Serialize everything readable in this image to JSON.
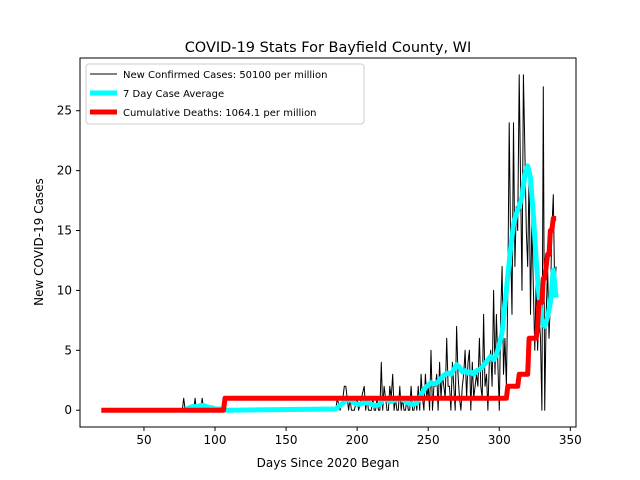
{
  "chart_data": {
    "type": "line",
    "title": "COVID-19 Stats For Bayfield County, WI",
    "xlabel": "Days Since 2020 Began",
    "ylabel": "New COVID-19 Cases",
    "xlim": [
      5,
      354
    ],
    "ylim": [
      -1.4,
      29.4
    ],
    "xticks": [
      50,
      100,
      150,
      200,
      250,
      300,
      350
    ],
    "yticks": [
      0,
      5,
      10,
      15,
      20,
      25
    ],
    "grid": false,
    "legend_position": "top-left",
    "series": [
      {
        "name": "New Confirmed Cases: 50100 per million",
        "color": "#000000",
        "x": [
          77,
          78,
          79,
          80,
          85,
          86,
          87,
          90,
          91,
          92,
          93,
          185,
          186,
          188,
          190,
          191,
          192,
          193,
          194,
          195,
          196,
          197,
          198,
          200,
          201,
          205,
          206,
          207,
          208,
          210,
          211,
          212,
          213,
          214,
          215,
          216,
          217,
          218,
          219,
          220,
          221,
          222,
          223,
          224,
          225,
          226,
          227,
          228,
          229,
          230,
          231,
          232,
          233,
          234,
          235,
          236,
          237,
          238,
          239,
          240,
          241,
          242,
          243,
          244,
          245,
          246,
          247,
          248,
          249,
          250,
          251,
          252,
          253,
          254,
          255,
          256,
          257,
          258,
          259,
          260,
          261,
          262,
          263,
          264,
          265,
          266,
          267,
          268,
          269,
          270,
          271,
          272,
          273,
          274,
          275,
          276,
          277,
          278,
          279,
          280,
          281,
          282,
          283,
          284,
          285,
          286,
          287,
          288,
          289,
          290,
          291,
          292,
          293,
          294,
          295,
          296,
          297,
          298,
          299,
          300,
          301,
          302,
          303,
          304,
          305,
          306,
          307,
          308,
          309,
          310,
          311,
          312,
          313,
          314,
          315,
          316,
          317,
          318,
          319,
          320,
          321,
          322,
          323,
          324,
          325,
          326,
          327,
          328,
          329,
          330,
          331,
          332,
          333,
          334,
          335,
          336,
          337,
          338,
          339,
          340
        ],
        "y": [
          0,
          1,
          0,
          0,
          0,
          1,
          0,
          0,
          1,
          0,
          0,
          0,
          1,
          0,
          1,
          2,
          2,
          1,
          0,
          1,
          0,
          0,
          0,
          1,
          0,
          2,
          0,
          1,
          0,
          0,
          1,
          0,
          0,
          1,
          0,
          0,
          4,
          0,
          2,
          1,
          0,
          0,
          2,
          1,
          3,
          0,
          1,
          0,
          0,
          2,
          0,
          1,
          0,
          0,
          1,
          0,
          0,
          2,
          0,
          0,
          1,
          0,
          2,
          0,
          3,
          1,
          0,
          3,
          1,
          2,
          0,
          5,
          0,
          2,
          2,
          3,
          0,
          4,
          1,
          3,
          2,
          1,
          6,
          2,
          2,
          0,
          4,
          2,
          0,
          7,
          3,
          1,
          0,
          2,
          3,
          5,
          1,
          4,
          5,
          0,
          4,
          1,
          2,
          3,
          2,
          6,
          2,
          1,
          8,
          2,
          3,
          0,
          4,
          5,
          2,
          10,
          3,
          8,
          4,
          0,
          8,
          12,
          3,
          6,
          2,
          10,
          24,
          14,
          8,
          24,
          12,
          17,
          15,
          28,
          19,
          10,
          28,
          22,
          15,
          12,
          20,
          8,
          16,
          10,
          5,
          11,
          5,
          8,
          6,
          0,
          27,
          0,
          8,
          12,
          6,
          9,
          15,
          18,
          10,
          12
        ],
        "line_width": 1
      },
      {
        "name": "7 Day Case Average",
        "color": "#00ffff",
        "x": [
          80,
          82,
          84,
          86,
          88,
          90,
          92,
          94,
          96,
          98,
          100,
          102,
          104,
          106,
          108,
          110,
          185,
          188,
          190,
          192,
          194,
          196,
          198,
          200,
          202,
          204,
          206,
          208,
          210,
          212,
          214,
          216,
          218,
          220,
          222,
          224,
          226,
          228,
          230,
          232,
          234,
          236,
          238,
          240,
          242,
          244,
          246,
          248,
          250,
          252,
          254,
          256,
          258,
          260,
          262,
          264,
          266,
          268,
          270,
          272,
          274,
          276,
          278,
          280,
          282,
          284,
          286,
          288,
          290,
          292,
          294,
          296,
          298,
          300,
          302,
          304,
          306,
          308,
          310,
          312,
          314,
          316,
          318,
          320,
          322,
          324,
          326,
          328,
          330,
          332,
          334,
          336,
          338,
          340
        ],
        "y": [
          0.1,
          0.2,
          0.3,
          0.3,
          0.3,
          0.4,
          0.4,
          0.3,
          0.2,
          0.2,
          0.1,
          0.1,
          0.1,
          0.1,
          0,
          0,
          0.1,
          0.4,
          0.6,
          0.8,
          0.9,
          0.8,
          0.6,
          0.5,
          0.5,
          0.6,
          0.6,
          0.6,
          0.5,
          0.4,
          0.4,
          0.5,
          0.9,
          1.0,
          0.8,
          0.7,
          0.8,
          0.9,
          1.0,
          0.9,
          0.7,
          0.6,
          0.5,
          0.5,
          0.6,
          1.0,
          1.5,
          1.9,
          2.1,
          2.3,
          2.2,
          2.3,
          2.5,
          2.8,
          3.0,
          3.1,
          3.0,
          3.4,
          3.8,
          3.6,
          3.2,
          3.3,
          3.1,
          3.2,
          3.0,
          3.3,
          3.4,
          3.6,
          3.9,
          4.2,
          4.5,
          4.2,
          4.6,
          5.5,
          6.5,
          8.8,
          11.2,
          13.5,
          15.5,
          16.4,
          17.0,
          17.8,
          19.6,
          20.4,
          19.4,
          16.2,
          12.5,
          9.5,
          7.3,
          7.0,
          7.8,
          9.0,
          11.7,
          9.4
        ],
        "line_width": 5
      },
      {
        "name": "Cumulative Deaths: 1064.1 per million",
        "color": "#ff0000",
        "x": [
          20,
          106,
          107,
          108,
          296,
          297,
          298,
          305,
          306,
          307,
          313,
          314,
          315,
          320,
          321,
          322,
          326,
          327,
          328,
          330,
          331,
          332,
          334,
          335,
          336,
          337,
          338,
          339,
          340
        ],
        "y": [
          0,
          0,
          1,
          1,
          1,
          1,
          1,
          1,
          2,
          2,
          2,
          3,
          3,
          3,
          6,
          6,
          6,
          7,
          9,
          9,
          11,
          11,
          13,
          13,
          15,
          15,
          16,
          16,
          16
        ],
        "line_width": 5
      }
    ]
  }
}
